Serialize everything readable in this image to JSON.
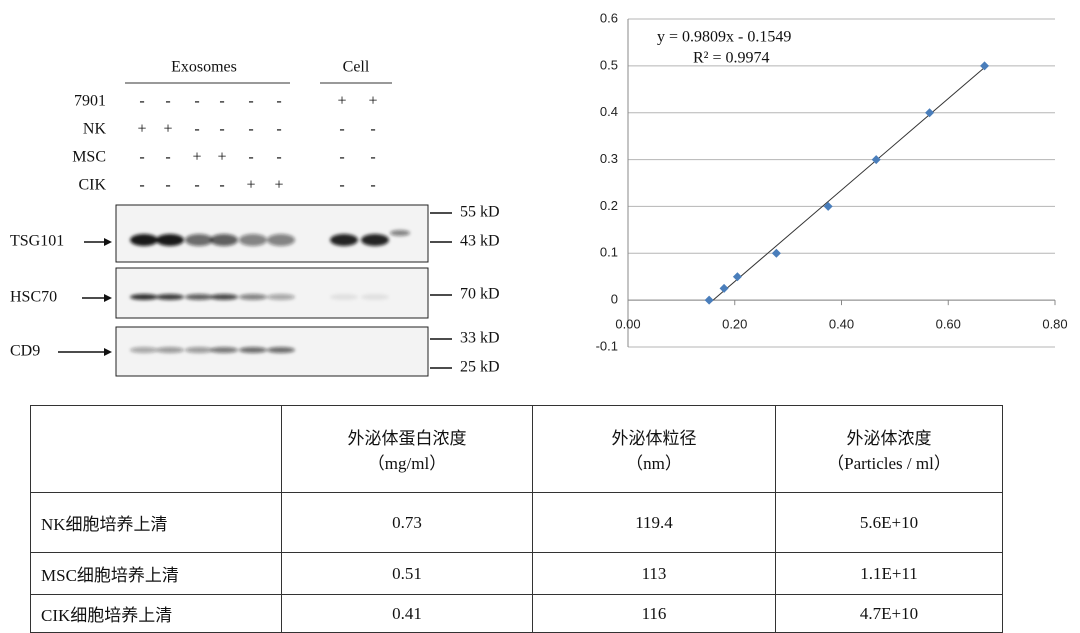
{
  "blot": {
    "groups": [
      "Exosomes",
      "Cell"
    ],
    "conditions": [
      {
        "label": "7901",
        "signs": [
          "-",
          "-",
          "-",
          "-",
          "-",
          "-",
          "+",
          "+"
        ]
      },
      {
        "label": "NK",
        "signs": [
          "+",
          "+",
          "-",
          "-",
          "-",
          "-",
          "-",
          "-"
        ]
      },
      {
        "label": "MSC",
        "signs": [
          "-",
          "-",
          "+",
          "+",
          "-",
          "-",
          "-",
          "-"
        ]
      },
      {
        "label": "CIK",
        "signs": [
          "-",
          "-",
          "-",
          "-",
          "+",
          "+",
          "-",
          "-"
        ]
      }
    ],
    "proteins": [
      "TSG101",
      "HSC70",
      "CD9"
    ],
    "markers": [
      "55 kD",
      "43 kD",
      "70 kD",
      "33 kD",
      "25 kD"
    ]
  },
  "chart_data": {
    "type": "scatter",
    "x": [
      0.152,
      0.18,
      0.205,
      0.278,
      0.375,
      0.465,
      0.565,
      0.668
    ],
    "y": [
      0,
      0.025,
      0.05,
      0.1,
      0.2,
      0.3,
      0.4,
      0.5
    ],
    "color": "#4a7ebb",
    "xlim": [
      0,
      0.8
    ],
    "ylim": [
      -0.1,
      0.6
    ],
    "xticks": [
      {
        "value": 0,
        "label": "0.00"
      },
      {
        "value": 0.2,
        "label": "0.20"
      },
      {
        "value": 0.4,
        "label": "0.40"
      },
      {
        "value": 0.6,
        "label": "0.60"
      },
      {
        "value": 0.8,
        "label": "0.80"
      }
    ],
    "yticks": [
      -0.1,
      0,
      0.1,
      0.2,
      0.3,
      0.4,
      0.5,
      0.6
    ],
    "grid": true,
    "trendline": true,
    "annotations": [
      "y = 0.9809x - 0.1549",
      "R² = 0.9974"
    ]
  },
  "table": {
    "header": [
      [
        "外泌体蛋白浓度",
        "（mg/ml）"
      ],
      [
        "外泌体粒径",
        "（nm）"
      ],
      [
        "外泌体浓度",
        "（Particles / ml）"
      ]
    ],
    "rows": [
      [
        "NK细胞培养上清",
        "0.73",
        "119.4",
        "5.6E+10"
      ],
      [
        "MSC细胞培养上清",
        "0.51",
        "113",
        "1.1E+11"
      ],
      [
        "CIK细胞培养上清",
        "0.41",
        "116",
        "4.7E+10"
      ]
    ]
  }
}
